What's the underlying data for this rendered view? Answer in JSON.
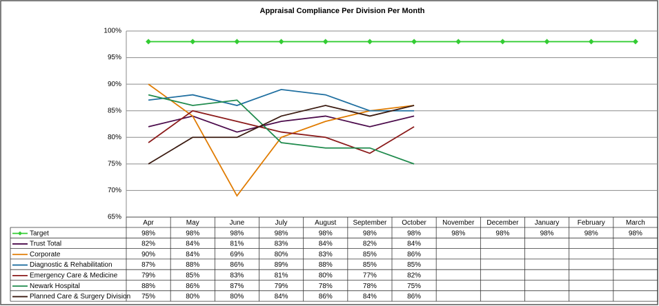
{
  "chart_data": {
    "type": "line",
    "title": "Appraisal Compliance Per Division Per Month",
    "categories": [
      "Apr",
      "May",
      "June",
      "July",
      "August",
      "September",
      "October",
      "November",
      "December",
      "January",
      "February",
      "March"
    ],
    "ylim": [
      65,
      100
    ],
    "yticks": [
      {
        "value": 65,
        "label": "65%"
      },
      {
        "value": 70,
        "label": "70%"
      },
      {
        "value": 75,
        "label": "75%"
      },
      {
        "value": 80,
        "label": "80%"
      },
      {
        "value": 85,
        "label": "85%"
      },
      {
        "value": 90,
        "label": "90%"
      },
      {
        "value": 95,
        "label": "95%"
      },
      {
        "value": 100,
        "label": "100%"
      }
    ],
    "grid": true,
    "series": [
      {
        "name": "Target",
        "color": "#33cc33",
        "marker": "diamond",
        "values": [
          98,
          98,
          98,
          98,
          98,
          98,
          98,
          98,
          98,
          98,
          98,
          98
        ],
        "value_labels": [
          "98%",
          "98%",
          "98%",
          "98%",
          "98%",
          "98%",
          "98%",
          "98%",
          "98%",
          "98%",
          "98%",
          "98%"
        ]
      },
      {
        "name": "Trust Total",
        "color": "#4b0b4b",
        "values": [
          82,
          84,
          81,
          83,
          84,
          82,
          84,
          null,
          null,
          null,
          null,
          null
        ],
        "value_labels": [
          "82%",
          "84%",
          "81%",
          "83%",
          "84%",
          "82%",
          "84%",
          null,
          null,
          null,
          null,
          null
        ]
      },
      {
        "name": "Corporate",
        "color": "#e07b00",
        "values": [
          90,
          84,
          69,
          80,
          83,
          85,
          86,
          null,
          null,
          null,
          null,
          null
        ],
        "value_labels": [
          "90%",
          "84%",
          "69%",
          "80%",
          "83%",
          "85%",
          "86%",
          null,
          null,
          null,
          null,
          null
        ]
      },
      {
        "name": "Diagnostic & Rehabilitation",
        "color": "#1f6fa0",
        "values": [
          87,
          88,
          86,
          89,
          88,
          85,
          85,
          null,
          null,
          null,
          null,
          null
        ],
        "value_labels": [
          "87%",
          "88%",
          "86%",
          "89%",
          "88%",
          "85%",
          "85%",
          null,
          null,
          null,
          null,
          null
        ]
      },
      {
        "name": "Emergency Care & Medicine",
        "color": "#8b1a1a",
        "values": [
          79,
          85,
          83,
          81,
          80,
          77,
          82,
          null,
          null,
          null,
          null,
          null
        ],
        "value_labels": [
          "79%",
          "85%",
          "83%",
          "81%",
          "80%",
          "77%",
          "82%",
          null,
          null,
          null,
          null,
          null
        ]
      },
      {
        "name": "Newark Hospital",
        "color": "#1e8a4c",
        "values": [
          88,
          86,
          87,
          79,
          78,
          78,
          75,
          null,
          null,
          null,
          null,
          null
        ],
        "value_labels": [
          "88%",
          "86%",
          "87%",
          "79%",
          "78%",
          "78%",
          "75%",
          null,
          null,
          null,
          null,
          null
        ]
      },
      {
        "name": "Planned Care & Surgery Division",
        "color": "#3a1a10",
        "values": [
          75,
          80,
          80,
          84,
          86,
          84,
          86,
          null,
          null,
          null,
          null,
          null
        ],
        "value_labels": [
          "75%",
          "80%",
          "80%",
          "84%",
          "86%",
          "84%",
          "86%",
          null,
          null,
          null,
          null,
          null
        ]
      }
    ]
  }
}
